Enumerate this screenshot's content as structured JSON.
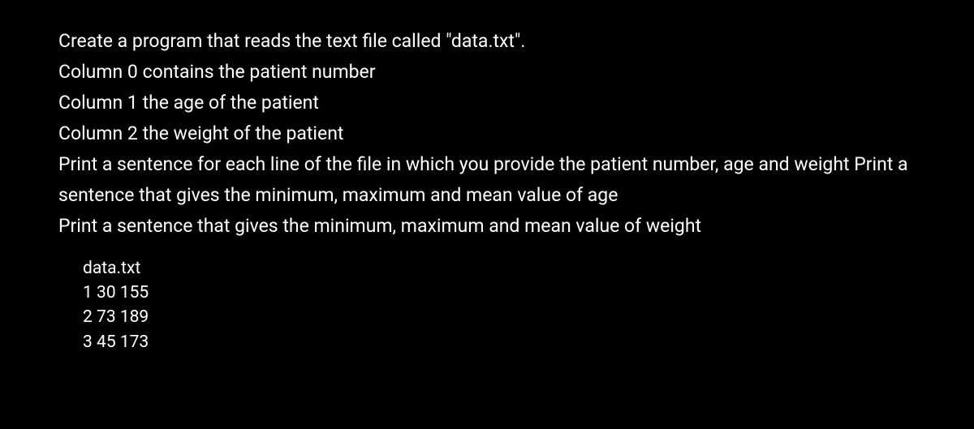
{
  "instructions": {
    "line1": "Create a program that reads the text file called \"data.txt\".",
    "line2": "Column 0 contains the patient number",
    "line3": "Column 1 the age of the patient",
    "line4": "Column 2 the weight of the patient",
    "line5": "Print a sentence for each line of the file in which you provide the patient number, age and weight Print a sentence that gives the minimum, maximum and mean value of age",
    "line6": "Print a sentence that gives the minimum, maximum and mean value of weight"
  },
  "dataBlock": {
    "filename": "data.txt",
    "row1": "1 30 155",
    "row2": "2 73 189",
    "row3": "3 45 173"
  },
  "colors": {
    "background": "#000000",
    "text": "#ffffff"
  },
  "typography": {
    "body_fontsize": 23,
    "data_fontsize": 21,
    "line_height": 1.65
  }
}
